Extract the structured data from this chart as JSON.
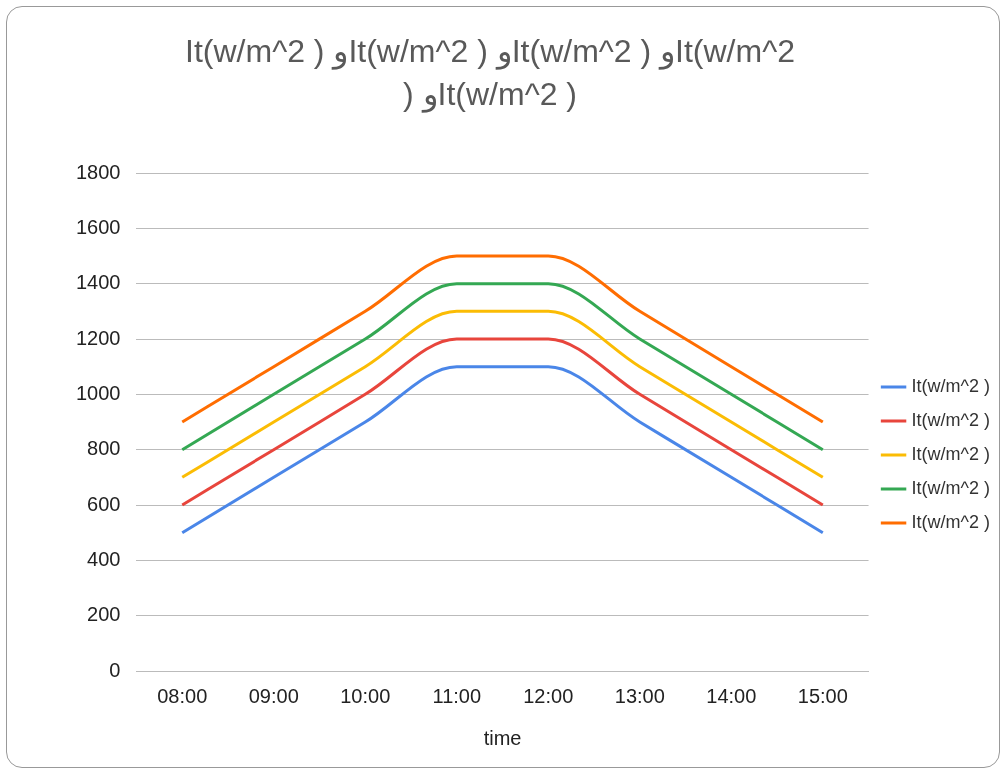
{
  "chart_data": {
    "type": "line",
    "title": "It(w/m^2 ) وIt(w/m^2 ) وIt(w/m^2 ) وIt(w/m^2 ) وIt(w/m^2 )",
    "xlabel": "time",
    "categories": [
      "08:00",
      "09:00",
      "10:00",
      "11:00",
      "12:00",
      "13:00",
      "14:00",
      "15:00"
    ],
    "series": [
      {
        "name": "It(w/m^2 )",
        "color": "#4a86e8",
        "values": [
          500,
          700,
          900,
          1100,
          1100,
          900,
          700,
          500
        ]
      },
      {
        "name": "It(w/m^2 )",
        "color": "#e8453c",
        "values": [
          600,
          800,
          1000,
          1200,
          1200,
          1000,
          800,
          600
        ]
      },
      {
        "name": "It(w/m^2 )",
        "color": "#fbbc04",
        "values": [
          700,
          900,
          1100,
          1300,
          1300,
          1100,
          900,
          700
        ]
      },
      {
        "name": "It(w/m^2 )",
        "color": "#34a853",
        "values": [
          800,
          1000,
          1200,
          1400,
          1400,
          1200,
          1000,
          800
        ]
      },
      {
        "name": "It(w/m^2 )",
        "color": "#ff6d01",
        "values": [
          900,
          1100,
          1300,
          1500,
          1500,
          1300,
          1100,
          900
        ]
      }
    ],
    "ylim": [
      0,
      1800
    ],
    "yticks": [
      0,
      200,
      400,
      600,
      800,
      1000,
      1200,
      1400,
      1600,
      1800
    ],
    "grid": "y",
    "legend": "right",
    "marker": "none",
    "line_style": "solid"
  }
}
